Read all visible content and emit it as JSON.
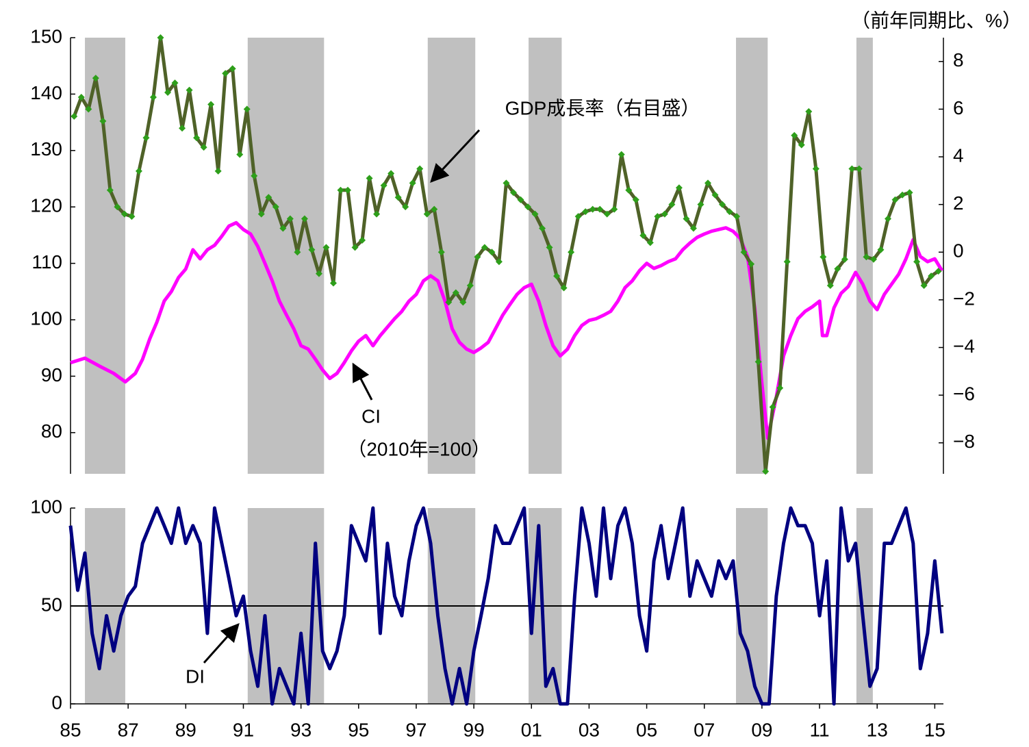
{
  "chart_data": [
    {
      "type": "line",
      "unit_label": "（前年同期比、%）",
      "xlim": [
        1985,
        2015.3
      ],
      "ylim": [
        72.7,
        150
      ],
      "yticks": [
        80,
        90,
        100,
        110,
        120,
        130,
        140,
        150
      ],
      "y2lim": [
        -9.3,
        9
      ],
      "y2ticks": [
        {
          "value": -8,
          "label": "−8"
        },
        {
          "value": -6,
          "label": "−6"
        },
        {
          "value": -4,
          "label": "−4"
        },
        {
          "value": -2,
          "label": "−2"
        },
        0,
        2,
        4,
        6,
        8
      ],
      "recessions": [
        [
          1985.5,
          1986.9
        ],
        [
          1991.15,
          1993.8
        ],
        [
          1997.4,
          1999.05
        ],
        [
          2000.9,
          2002.05
        ],
        [
          2008.1,
          2009.2
        ],
        [
          2012.28,
          2012.85
        ]
      ],
      "recession_color": "#c0c0c0",
      "annotations": [
        "（2010年=100）"
      ],
      "series": [
        {
          "name": "CI",
          "color": "#ff00ff",
          "x": [
            1985.0,
            1985.5,
            1986.0,
            1986.5,
            1986.9,
            1987.25,
            1987.5,
            1987.75,
            1988.0,
            1988.25,
            1988.5,
            1988.75,
            1989.0,
            1989.25,
            1989.5,
            1989.75,
            1990.0,
            1990.25,
            1990.5,
            1990.75,
            1991.0,
            1991.25,
            1991.5,
            1991.75,
            1992.0,
            1992.25,
            1992.5,
            1992.75,
            1993.0,
            1993.25,
            1993.5,
            1993.75,
            1994.0,
            1994.25,
            1994.5,
            1994.75,
            1995.0,
            1995.25,
            1995.5,
            1995.75,
            1996.0,
            1996.25,
            1996.5,
            1996.75,
            1997.0,
            1997.25,
            1997.5,
            1997.75,
            1998.0,
            1998.25,
            1998.5,
            1998.75,
            1999.0,
            1999.25,
            1999.5,
            1999.75,
            2000.0,
            2000.25,
            2000.5,
            2000.75,
            2001.0,
            2001.25,
            2001.5,
            2001.75,
            2002.0,
            2002.25,
            2002.5,
            2002.75,
            2003.0,
            2003.25,
            2003.5,
            2003.75,
            2004.0,
            2004.25,
            2004.5,
            2004.75,
            2005.0,
            2005.25,
            2005.5,
            2005.75,
            2006.0,
            2006.25,
            2006.5,
            2006.75,
            2007.0,
            2007.25,
            2007.5,
            2007.75,
            2008.0,
            2008.25,
            2008.5,
            2008.75,
            2009.0,
            2009.2,
            2009.5,
            2009.75,
            2010.0,
            2010.25,
            2010.5,
            2010.75,
            2011.0,
            2011.1,
            2011.25,
            2011.5,
            2011.75,
            2012.0,
            2012.25,
            2012.5,
            2012.75,
            2013.0,
            2013.25,
            2013.5,
            2013.75,
            2014.0,
            2014.25,
            2014.5,
            2014.75,
            2015.0,
            2015.25
          ],
          "values": [
            92.4,
            93.2,
            91.8,
            90.5,
            89.0,
            90.5,
            93.0,
            96.6,
            99.6,
            103.3,
            105,
            107.5,
            109,
            112.4,
            110.8,
            112.4,
            113.2,
            114.8,
            116.6,
            117.2,
            116,
            115.2,
            113,
            110,
            106.9,
            103.3,
            100.8,
            98.4,
            95.4,
            94.8,
            93,
            91.1,
            89.6,
            90.5,
            92.4,
            94.5,
            96.2,
            97.2,
            95.4,
            97.2,
            98.7,
            100.2,
            101.5,
            103.3,
            104.5,
            106.9,
            107.8,
            106.9,
            103.3,
            98.4,
            96,
            94.8,
            94.2,
            95,
            96,
            98.4,
            100.8,
            102.7,
            104.5,
            105.7,
            106.3,
            103.3,
            99,
            95.4,
            93.6,
            94.8,
            97.2,
            99,
            99.9,
            100.2,
            100.8,
            101.5,
            103.3,
            105.7,
            106.9,
            108.7,
            110,
            109.1,
            109.6,
            110.3,
            110.8,
            112.4,
            113.6,
            114.6,
            115.2,
            115.7,
            116,
            116.3,
            115.7,
            114.4,
            111.2,
            102.1,
            88.7,
            79,
            86.3,
            93.6,
            97.2,
            100.2,
            101.5,
            102.3,
            103.3,
            97.2,
            97.2,
            102.1,
            104.7,
            105.9,
            108.4,
            106.3,
            103.3,
            101.8,
            104.5,
            106.3,
            108.1,
            110.8,
            114.2,
            111.2,
            110.3,
            110.8,
            108.7
          ]
        },
        {
          "name": "GDP成長率（右目盛）",
          "axis": "y2",
          "color": "#4f6228",
          "marker_color": "#2e9e1a",
          "x": [
            1985.125,
            1985.375,
            1985.625,
            1985.875,
            1986.125,
            1986.375,
            1986.625,
            1986.875,
            1987.125,
            1987.375,
            1987.625,
            1987.875,
            1988.125,
            1988.375,
            1988.625,
            1988.875,
            1989.125,
            1989.375,
            1989.625,
            1989.875,
            1990.125,
            1990.375,
            1990.625,
            1990.875,
            1991.125,
            1991.375,
            1991.625,
            1991.875,
            1992.125,
            1992.375,
            1992.625,
            1992.875,
            1993.125,
            1993.375,
            1993.625,
            1993.875,
            1994.125,
            1994.375,
            1994.625,
            1994.875,
            1995.125,
            1995.375,
            1995.625,
            1995.875,
            1996.125,
            1996.375,
            1996.625,
            1996.875,
            1997.125,
            1997.375,
            1997.625,
            1997.875,
            1998.125,
            1998.375,
            1998.625,
            1998.875,
            1999.125,
            1999.375,
            1999.625,
            1999.875,
            2000.125,
            2000.375,
            2000.625,
            2000.875,
            2001.125,
            2001.375,
            2001.625,
            2001.875,
            2002.125,
            2002.375,
            2002.625,
            2002.875,
            2003.125,
            2003.375,
            2003.625,
            2003.875,
            2004.125,
            2004.375,
            2004.625,
            2004.875,
            2005.125,
            2005.375,
            2005.625,
            2005.875,
            2006.125,
            2006.375,
            2006.625,
            2006.875,
            2007.125,
            2007.375,
            2007.625,
            2007.875,
            2008.125,
            2008.375,
            2008.625,
            2008.875,
            2009.125,
            2009.375,
            2009.625,
            2009.875,
            2010.125,
            2010.375,
            2010.625,
            2010.875,
            2011.125,
            2011.375,
            2011.625,
            2011.875,
            2012.125,
            2012.375,
            2012.625,
            2012.875,
            2013.125,
            2013.375,
            2013.625,
            2013.875,
            2014.125,
            2014.375,
            2014.625,
            2014.875,
            2015.125
          ],
          "values": [
            5.7,
            6.5,
            6.0,
            7.3,
            5.5,
            2.6,
            1.9,
            1.6,
            1.5,
            3.4,
            4.8,
            6.5,
            9.0,
            6.7,
            7.1,
            5.2,
            6.8,
            4.8,
            4.4,
            6.2,
            3.4,
            7.5,
            7.7,
            4.1,
            6.0,
            3.2,
            1.6,
            2.3,
            1.9,
            1.0,
            1.4,
            0.0,
            1.4,
            0.1,
            -0.9,
            0.2,
            -1.3,
            2.6,
            2.6,
            0.2,
            0.5,
            3.1,
            1.6,
            2.8,
            3.3,
            2.3,
            1.9,
            2.9,
            3.5,
            1.6,
            1.8,
            0.0,
            -2.1,
            -1.7,
            -2.1,
            -1.4,
            -0.2,
            0.2,
            0.0,
            -0.4,
            2.9,
            2.5,
            2.2,
            1.9,
            1.6,
            1.0,
            0.2,
            -1.0,
            -1.5,
            0.0,
            1.5,
            1.7,
            1.8,
            1.8,
            1.6,
            1.8,
            4.1,
            2.6,
            2.2,
            0.7,
            0.4,
            1.5,
            1.6,
            2.0,
            2.7,
            1.4,
            1.0,
            2.0,
            2.9,
            2.4,
            2.0,
            1.7,
            1.5,
            0.0,
            -0.5,
            -4.6,
            -9.2,
            -6.5,
            -5.7,
            -0.4,
            4.9,
            4.5,
            5.9,
            3.5,
            -0.2,
            -1.4,
            -0.7,
            -0.3,
            3.5,
            3.5,
            -0.2,
            -0.3,
            0.1,
            1.4,
            2.2,
            2.4,
            2.5,
            -0.4,
            -1.4,
            -1.0,
            -0.8
          ]
        }
      ]
    },
    {
      "type": "line",
      "xlim": [
        1985,
        2015.3
      ],
      "ylim": [
        0,
        100
      ],
      "yticks": [
        0,
        50,
        100
      ],
      "reference_line": 50,
      "xticks": [
        {
          "value": 1985,
          "label": "85"
        },
        {
          "value": 1987,
          "label": "87"
        },
        {
          "value": 1989,
          "label": "89"
        },
        {
          "value": 1991,
          "label": "91"
        },
        {
          "value": 1993,
          "label": "93"
        },
        {
          "value": 1995,
          "label": "95"
        },
        {
          "value": 1997,
          "label": "97"
        },
        {
          "value": 1999,
          "label": "99"
        },
        {
          "value": 2001,
          "label": "01"
        },
        {
          "value": 2003,
          "label": "03"
        },
        {
          "value": 2005,
          "label": "05"
        },
        {
          "value": 2007,
          "label": "07"
        },
        {
          "value": 2009,
          "label": "09"
        },
        {
          "value": 2011,
          "label": "11"
        },
        {
          "value": 2013,
          "label": "13"
        },
        {
          "value": 2015,
          "label": "15"
        }
      ],
      "recessions": [
        [
          1985.5,
          1986.9
        ],
        [
          1991.15,
          1993.8
        ],
        [
          1997.4,
          1999.05
        ],
        [
          2000.9,
          2002.05
        ],
        [
          2008.1,
          2009.2
        ],
        [
          2012.28,
          2012.85
        ]
      ],
      "recession_color": "#c0c0c0",
      "series": [
        {
          "name": "DI",
          "color": "#000080",
          "x": [
            1985.0,
            1985.25,
            1985.5,
            1985.75,
            1986.0,
            1986.25,
            1986.5,
            1986.75,
            1987.0,
            1987.25,
            1987.5,
            1987.75,
            1988.0,
            1988.25,
            1988.5,
            1988.75,
            1989.0,
            1989.25,
            1989.5,
            1989.75,
            1990.0,
            1990.25,
            1990.5,
            1990.75,
            1991.0,
            1991.25,
            1991.5,
            1991.75,
            1992.0,
            1992.25,
            1992.5,
            1992.75,
            1993.0,
            1993.25,
            1993.5,
            1993.75,
            1994.0,
            1994.25,
            1994.5,
            1994.75,
            1995.0,
            1995.25,
            1995.5,
            1995.75,
            1996.0,
            1996.25,
            1996.5,
            1996.75,
            1997.0,
            1997.25,
            1997.5,
            1997.75,
            1998.0,
            1998.25,
            1998.5,
            1998.75,
            1999.0,
            1999.25,
            1999.5,
            1999.75,
            2000.0,
            2000.25,
            2000.5,
            2000.75,
            2001.0,
            2001.25,
            2001.5,
            2001.75,
            2002.0,
            2002.25,
            2002.5,
            2002.75,
            2003.0,
            2003.25,
            2003.5,
            2003.75,
            2004.0,
            2004.25,
            2004.5,
            2004.75,
            2005.0,
            2005.25,
            2005.5,
            2005.75,
            2006.0,
            2006.25,
            2006.5,
            2006.75,
            2007.0,
            2007.25,
            2007.5,
            2007.75,
            2008.0,
            2008.25,
            2008.5,
            2008.75,
            2009.0,
            2009.25,
            2009.5,
            2009.75,
            2010.0,
            2010.25,
            2010.5,
            2010.75,
            2011.0,
            2011.25,
            2011.5,
            2011.75,
            2012.0,
            2012.25,
            2012.5,
            2012.75,
            2013.0,
            2013.25,
            2013.5,
            2013.75,
            2014.0,
            2014.25,
            2014.5,
            2014.75,
            2015.0,
            2015.25
          ],
          "values": [
            91,
            58,
            77,
            36,
            18,
            45,
            27,
            45,
            55,
            60,
            82,
            91,
            100,
            91,
            82,
            100,
            82,
            91,
            82,
            36,
            100,
            82,
            64,
            45,
            55,
            27,
            9,
            45,
            0,
            18,
            9,
            0,
            36,
            0,
            82,
            27,
            18,
            27,
            45,
            91,
            82,
            73,
            100,
            36,
            82,
            55,
            45,
            73,
            91,
            100,
            82,
            45,
            18,
            0,
            18,
            0,
            27,
            45,
            64,
            91,
            82,
            82,
            91,
            100,
            36,
            91,
            9,
            18,
            0,
            0,
            55,
            100,
            82,
            55,
            100,
            64,
            91,
            100,
            82,
            45,
            27,
            73,
            91,
            64,
            82,
            100,
            55,
            73,
            64,
            55,
            73,
            64,
            73,
            36,
            27,
            9,
            0,
            0,
            55,
            82,
            100,
            91,
            91,
            82,
            45,
            73,
            0,
            100,
            73,
            82,
            45,
            9,
            18,
            82,
            82,
            91,
            100,
            82,
            18,
            36,
            73,
            36
          ]
        }
      ]
    }
  ]
}
